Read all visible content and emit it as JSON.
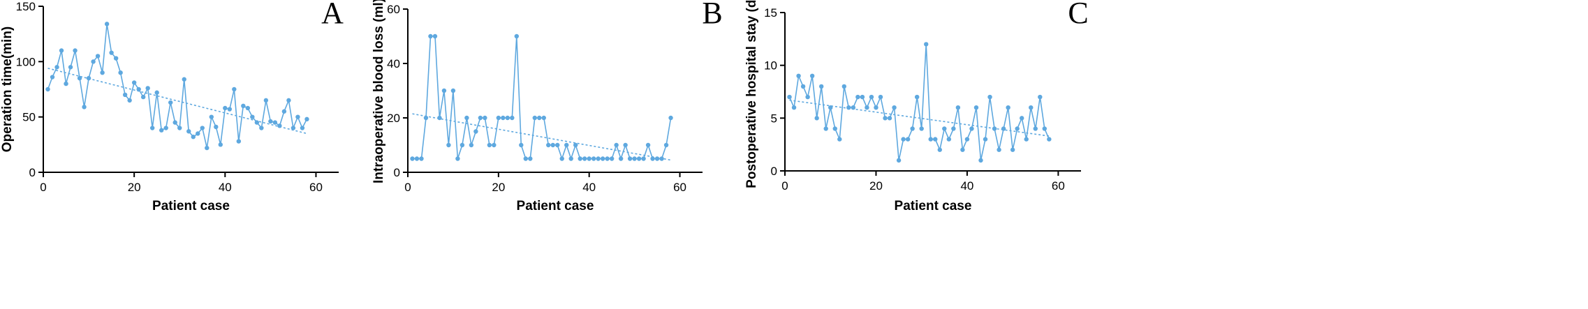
{
  "colors": {
    "series": "#5ea8df",
    "axis": "#000000"
  },
  "chart_data": [
    {
      "type": "line",
      "panel_label": "A",
      "xlabel": "Patient case",
      "ylabel": "Operation time(min)",
      "xlim": [
        0,
        65
      ],
      "ylim": [
        0,
        150
      ],
      "xticks": [
        0,
        20,
        40,
        60
      ],
      "yticks": [
        0,
        50,
        100,
        150
      ],
      "x": [
        1,
        2,
        3,
        4,
        5,
        6,
        7,
        8,
        9,
        10,
        11,
        12,
        13,
        14,
        15,
        16,
        17,
        18,
        19,
        20,
        21,
        22,
        23,
        24,
        25,
        26,
        27,
        28,
        29,
        30,
        31,
        32,
        33,
        34,
        35,
        36,
        37,
        38,
        39,
        40,
        41,
        42,
        43,
        44,
        45,
        46,
        47,
        48,
        49,
        50,
        51,
        52,
        53,
        54,
        55,
        56,
        57,
        58
      ],
      "values": [
        75,
        86,
        95,
        110,
        80,
        95,
        110,
        85,
        59,
        85,
        100,
        105,
        90,
        134,
        108,
        103,
        90,
        70,
        65,
        81,
        75,
        68,
        76,
        40,
        72,
        38,
        40,
        63,
        45,
        40,
        84,
        37,
        32,
        35,
        40,
        22,
        50,
        41,
        25,
        58,
        57,
        75,
        28,
        60,
        58,
        50,
        45,
        40,
        65,
        46,
        45,
        42,
        55,
        65,
        40,
        50,
        40,
        48
      ],
      "trend": {
        "x": [
          1,
          58
        ],
        "y": [
          94,
          35
        ]
      }
    },
    {
      "type": "line",
      "panel_label": "B",
      "xlabel": "Patient case",
      "ylabel": "Intraoperative blood loss (ml)",
      "xlim": [
        0,
        65
      ],
      "ylim": [
        0,
        60
      ],
      "xticks": [
        0,
        20,
        40,
        60
      ],
      "yticks": [
        0,
        20,
        40,
        60
      ],
      "x": [
        1,
        2,
        3,
        4,
        5,
        6,
        7,
        8,
        9,
        10,
        11,
        12,
        13,
        14,
        15,
        16,
        17,
        18,
        19,
        20,
        21,
        22,
        23,
        24,
        25,
        26,
        27,
        28,
        29,
        30,
        31,
        32,
        33,
        34,
        35,
        36,
        37,
        38,
        39,
        40,
        41,
        42,
        43,
        44,
        45,
        46,
        47,
        48,
        49,
        50,
        51,
        52,
        53,
        54,
        55,
        56,
        57,
        58
      ],
      "values": [
        5,
        5,
        5,
        20,
        50,
        50,
        20,
        30,
        10,
        30,
        5,
        10,
        20,
        10,
        15,
        20,
        20,
        10,
        10,
        20,
        20,
        20,
        20,
        50,
        10,
        5,
        5,
        20,
        20,
        20,
        10,
        10,
        10,
        5,
        10,
        5,
        10,
        5,
        5,
        5,
        5,
        5,
        5,
        5,
        5,
        10,
        5,
        10,
        5,
        5,
        5,
        5,
        10,
        5,
        5,
        5,
        10,
        20
      ],
      "trend": {
        "x": [
          1,
          58
        ],
        "y": [
          21.5,
          4.5
        ]
      }
    },
    {
      "type": "line",
      "panel_label": "C",
      "xlabel": "Patient case",
      "ylabel": "Postoperative hospital stay (d)",
      "xlim": [
        0,
        65
      ],
      "ylim": [
        0,
        15
      ],
      "xticks": [
        0,
        20,
        40,
        60
      ],
      "yticks": [
        0,
        5,
        10,
        15
      ],
      "x": [
        1,
        2,
        3,
        4,
        5,
        6,
        7,
        8,
        9,
        10,
        11,
        12,
        13,
        14,
        15,
        16,
        17,
        18,
        19,
        20,
        21,
        22,
        23,
        24,
        25,
        26,
        27,
        28,
        29,
        30,
        31,
        32,
        33,
        34,
        35,
        36,
        37,
        38,
        39,
        40,
        41,
        42,
        43,
        44,
        45,
        46,
        47,
        48,
        49,
        50,
        51,
        52,
        53,
        54,
        55,
        56,
        57,
        58
      ],
      "values": [
        7,
        6,
        9,
        8,
        7,
        9,
        5,
        8,
        4,
        6,
        4,
        3,
        8,
        6,
        6,
        7,
        7,
        6,
        7,
        6,
        7,
        5,
        5,
        6,
        1,
        3,
        3,
        4,
        7,
        4,
        12,
        3,
        3,
        2,
        4,
        3,
        4,
        6,
        2,
        3,
        4,
        6,
        1,
        3,
        7,
        4,
        2,
        4,
        6,
        2,
        4,
        5,
        3,
        6,
        4,
        7,
        4,
        3
      ],
      "trend": {
        "x": [
          1,
          58
        ],
        "y": [
          6.7,
          3.3
        ]
      }
    }
  ]
}
